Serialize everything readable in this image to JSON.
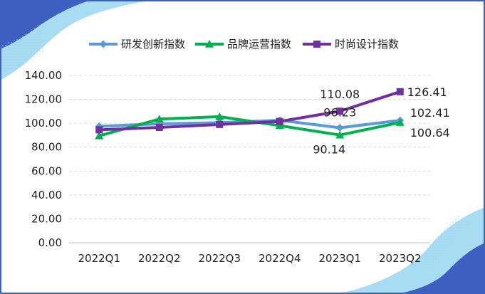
{
  "chart_data": {
    "type": "line",
    "title": "",
    "xlabel": "",
    "ylabel": "",
    "categories": [
      "2022Q1",
      "2022Q2",
      "2022Q3",
      "2022Q4",
      "2023Q1",
      "2023Q2"
    ],
    "ylim": [
      0,
      140
    ],
    "yticks": [
      "0.00",
      "20.00",
      "40.00",
      "60.00",
      "80.00",
      "100.00",
      "120.00",
      "140.00"
    ],
    "grid": true,
    "legend_position": "top",
    "series": [
      {
        "name": "研发创新指数",
        "color": "#5b9bd5",
        "marker": "diamond",
        "values": [
          97.5,
          99.5,
          100.5,
          102.5,
          96.23,
          102.41
        ]
      },
      {
        "name": "品牌运营指数",
        "color": "#00b050",
        "marker": "triangle",
        "values": [
          89.5,
          103.5,
          105.5,
          98.0,
          90.14,
          100.64
        ]
      },
      {
        "name": "时尚设计指数",
        "color": "#7030a0",
        "marker": "square",
        "values": [
          94.5,
          96.5,
          99.0,
          101.5,
          110.08,
          126.41
        ]
      }
    ],
    "data_labels": [
      {
        "series": 2,
        "index": 4,
        "text": "110.08"
      },
      {
        "series": 0,
        "index": 4,
        "text": "96.23"
      },
      {
        "series": 1,
        "index": 4,
        "text": "90.14"
      },
      {
        "series": 2,
        "index": 5,
        "text": "126.41"
      },
      {
        "series": 0,
        "index": 5,
        "text": "102.41"
      },
      {
        "series": 1,
        "index": 5,
        "text": "100.64"
      }
    ]
  }
}
